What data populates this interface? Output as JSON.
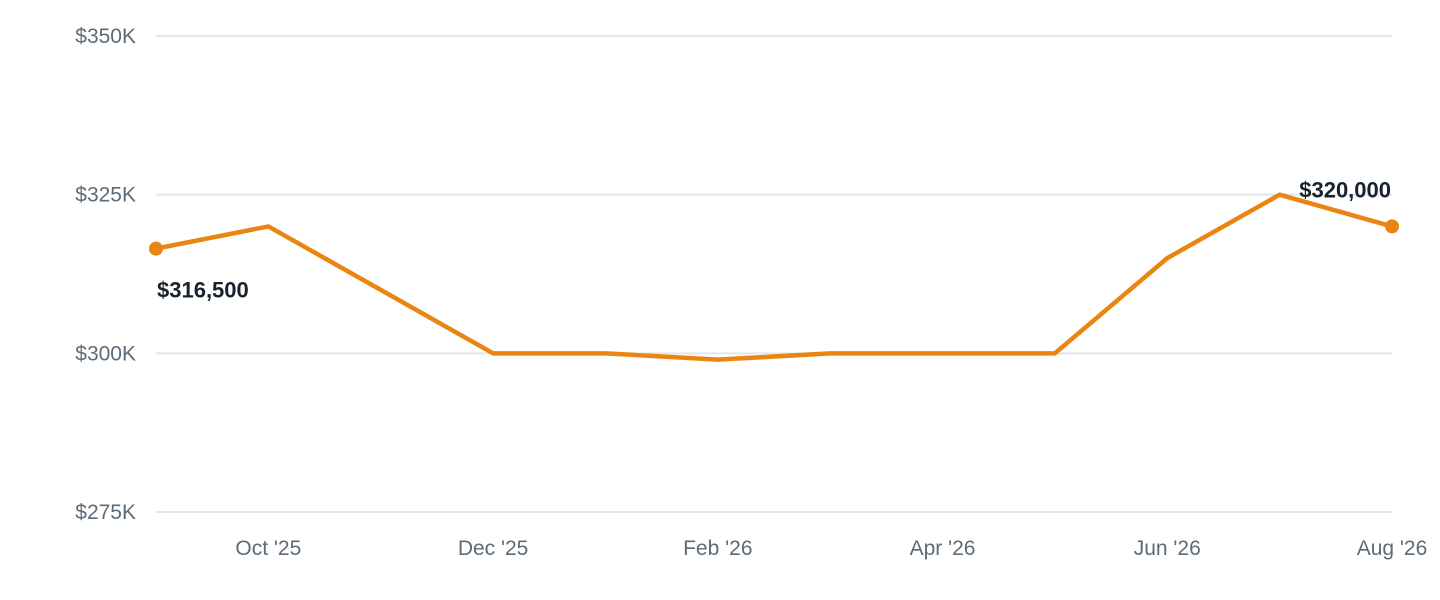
{
  "chart_data": {
    "type": "line",
    "title": "",
    "xlabel": "",
    "ylabel": "",
    "x": [
      "Sep '25",
      "Oct '25",
      "Nov '25",
      "Dec '25",
      "Jan '26",
      "Feb '26",
      "Mar '26",
      "Apr '26",
      "May '26",
      "Jun '26",
      "Jul '26",
      "Aug '26"
    ],
    "x_tick_labels": [
      "Oct '25",
      "Dec '25",
      "Feb '26",
      "Apr '26",
      "Jun '26",
      "Aug '26"
    ],
    "series": [
      {
        "values": [
          316500,
          320000,
          310000,
          300000,
          300000,
          299000,
          300000,
          300000,
          300000,
          315000,
          325000,
          320000
        ],
        "color": "#ea8511"
      }
    ],
    "ylim": [
      275000,
      350000
    ],
    "y_ticks": [
      275000,
      300000,
      325000,
      350000
    ],
    "y_tick_labels": [
      "$275K",
      "$300K",
      "$325K",
      "$350K"
    ],
    "data_labels": [
      {
        "index": 0,
        "text": "$316,500"
      },
      {
        "index": 11,
        "text": "$320,000"
      }
    ],
    "grid": true,
    "legend": "none"
  }
}
